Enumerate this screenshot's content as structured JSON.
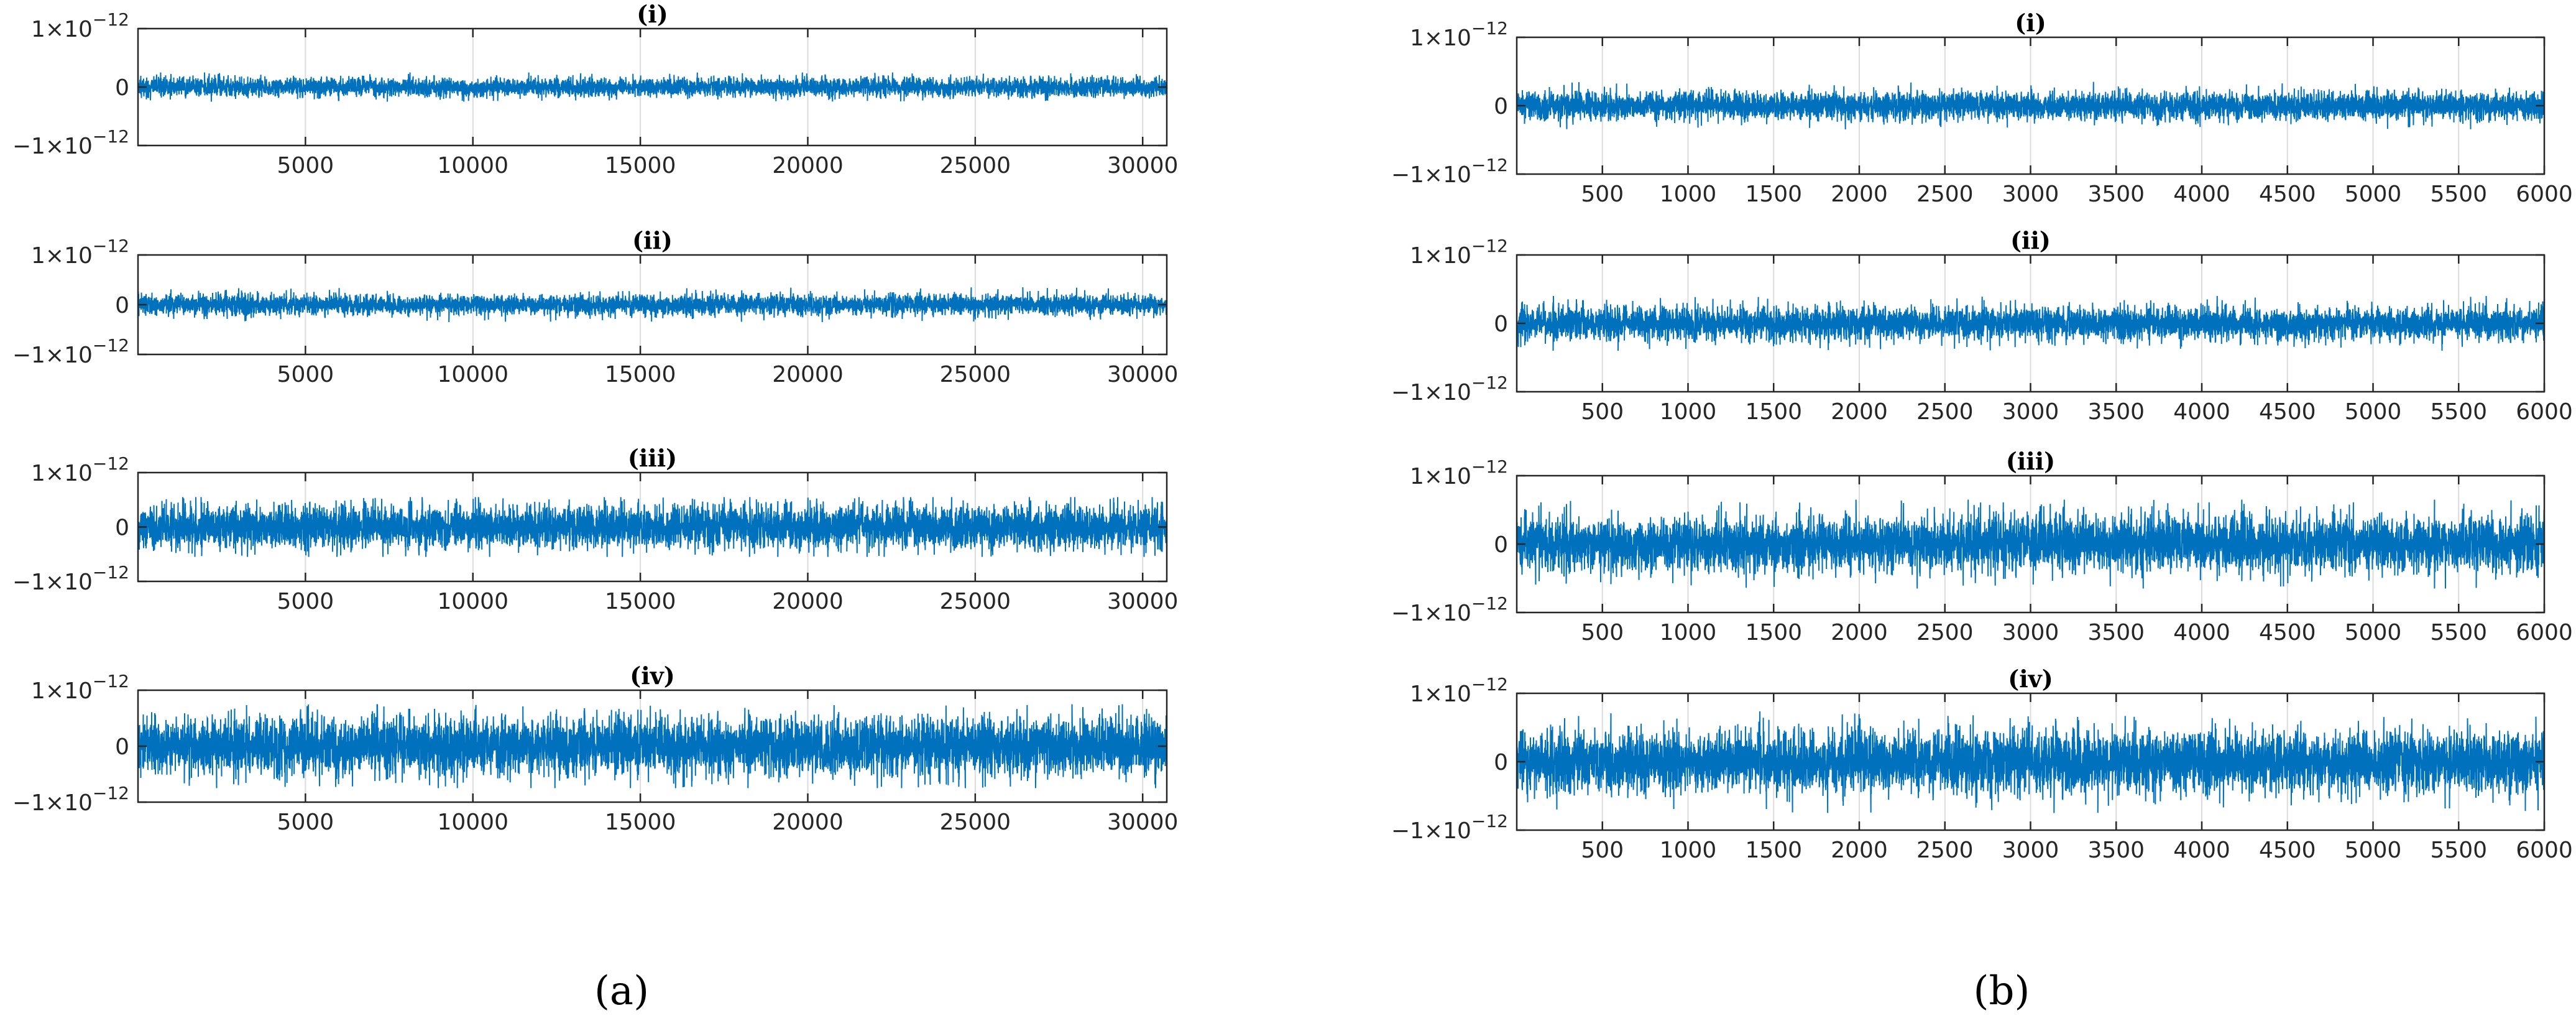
{
  "colors": {
    "series": "#0072BD",
    "grid": "#dcdcdc",
    "axis": "#262626",
    "background": "#ffffff"
  },
  "chart_data": [
    {
      "type": "line",
      "caption": "(a)",
      "subplot": "i",
      "title": "(i)",
      "xlim": [
        0,
        30720
      ],
      "ylim": [
        -1e-12,
        1e-12
      ],
      "grid": "vertical",
      "xticks": [
        5000,
        10000,
        15000,
        20000,
        25000,
        30000
      ],
      "xticklabels": [
        "5000",
        "10000",
        "15000",
        "20000",
        "25000",
        "30000"
      ],
      "yticks": [
        -1e-12,
        0,
        1e-12
      ],
      "yticklabels": [
        {
          "m": "−1×10",
          "e": "−12"
        },
        {
          "m": "0",
          "e": ""
        },
        {
          "m": "1×10",
          "e": "−12"
        }
      ],
      "series": [
        {
          "n_points": 30720,
          "mean": 0,
          "std": 8e-14,
          "peak": 2.5e-13,
          "seed": 11
        }
      ]
    },
    {
      "type": "line",
      "caption": "(a)",
      "subplot": "ii",
      "title": "(ii)",
      "xlim": [
        0,
        30720
      ],
      "ylim": [
        -1e-12,
        1e-12
      ],
      "grid": "vertical",
      "xticks": [
        5000,
        10000,
        15000,
        20000,
        25000,
        30000
      ],
      "xticklabels": [
        "5000",
        "10000",
        "15000",
        "20000",
        "25000",
        "30000"
      ],
      "yticks": [
        -1e-12,
        0,
        1e-12
      ],
      "yticklabels": [
        {
          "m": "−1×10",
          "e": "−12"
        },
        {
          "m": "0",
          "e": ""
        },
        {
          "m": "1×10",
          "e": "−12"
        }
      ],
      "series": [
        {
          "n_points": 30720,
          "mean": 0,
          "std": 1e-13,
          "peak": 3.5e-13,
          "seed": 23
        }
      ]
    },
    {
      "type": "line",
      "caption": "(a)",
      "subplot": "iii",
      "title": "(iii)",
      "xlim": [
        0,
        30720
      ],
      "ylim": [
        -1e-12,
        1e-12
      ],
      "grid": "vertical",
      "xticks": [
        5000,
        10000,
        15000,
        20000,
        25000,
        30000
      ],
      "xticklabels": [
        "5000",
        "10000",
        "15000",
        "20000",
        "25000",
        "30000"
      ],
      "yticks": [
        -1e-12,
        0,
        1e-12
      ],
      "yticklabels": [
        {
          "m": "−1×10",
          "e": "−12"
        },
        {
          "m": "0",
          "e": ""
        },
        {
          "m": "1×10",
          "e": "−12"
        }
      ],
      "series": [
        {
          "n_points": 30720,
          "mean": 0,
          "std": 2e-13,
          "peak": 5.5e-13,
          "seed": 37
        }
      ]
    },
    {
      "type": "line",
      "caption": "(a)",
      "subplot": "iv",
      "title": "(iv)",
      "xlim": [
        0,
        30720
      ],
      "ylim": [
        -1e-12,
        1e-12
      ],
      "grid": "vertical",
      "xticks": [
        5000,
        10000,
        15000,
        20000,
        25000,
        30000
      ],
      "xticklabels": [
        "5000",
        "10000",
        "15000",
        "20000",
        "25000",
        "30000"
      ],
      "yticks": [
        -1e-12,
        0,
        1e-12
      ],
      "yticklabels": [
        {
          "m": "−1×10",
          "e": "−12"
        },
        {
          "m": "0",
          "e": ""
        },
        {
          "m": "1×10",
          "e": "−12"
        }
      ],
      "series": [
        {
          "n_points": 30720,
          "mean": 0,
          "std": 2.5e-13,
          "peak": 7.5e-13,
          "seed": 41
        }
      ]
    },
    {
      "type": "line",
      "caption": "(b)",
      "subplot": "i",
      "title": "(i)",
      "xlim": [
        0,
        6000
      ],
      "ylim": [
        -1e-12,
        1e-12
      ],
      "grid": "vertical",
      "xticks": [
        500,
        1000,
        1500,
        2000,
        2500,
        3000,
        3500,
        4000,
        4500,
        5000,
        5500,
        6000
      ],
      "xticklabels": [
        "500",
        "1000",
        "1500",
        "2000",
        "2500",
        "3000",
        "3500",
        "4000",
        "4500",
        "5000",
        "5500",
        "6000"
      ],
      "yticks": [
        -1e-12,
        0,
        1e-12
      ],
      "yticklabels": [
        {
          "m": "−1×10",
          "e": "−12"
        },
        {
          "m": "0",
          "e": ""
        },
        {
          "m": "1×10",
          "e": "−12"
        }
      ],
      "series": [
        {
          "n_points": 6000,
          "mean": 0,
          "std": 1e-13,
          "peak": 3.5e-13,
          "seed": 53
        }
      ]
    },
    {
      "type": "line",
      "caption": "(b)",
      "subplot": "ii",
      "title": "(ii)",
      "xlim": [
        0,
        6000
      ],
      "ylim": [
        -1e-12,
        1e-12
      ],
      "grid": "vertical",
      "xticks": [
        500,
        1000,
        1500,
        2000,
        2500,
        3000,
        3500,
        4000,
        4500,
        5000,
        5500,
        6000
      ],
      "xticklabels": [
        "500",
        "1000",
        "1500",
        "2000",
        "2500",
        "3000",
        "3500",
        "4000",
        "4500",
        "5000",
        "5500",
        "6000"
      ],
      "yticks": [
        -1e-12,
        0,
        1e-12
      ],
      "yticklabels": [
        {
          "m": "−1×10",
          "e": "−12"
        },
        {
          "m": "0",
          "e": ""
        },
        {
          "m": "1×10",
          "e": "−12"
        }
      ],
      "series": [
        {
          "n_points": 6000,
          "mean": 0,
          "std": 1.2e-13,
          "peak": 4e-13,
          "seed": 67
        }
      ]
    },
    {
      "type": "line",
      "caption": "(b)",
      "subplot": "iii",
      "title": "(iii)",
      "xlim": [
        0,
        6000
      ],
      "ylim": [
        -1e-12,
        1e-12
      ],
      "grid": "vertical",
      "xticks": [
        500,
        1000,
        1500,
        2000,
        2500,
        3000,
        3500,
        4000,
        4500,
        5000,
        5500,
        6000
      ],
      "xticklabels": [
        "500",
        "1000",
        "1500",
        "2000",
        "2500",
        "3000",
        "3500",
        "4000",
        "4500",
        "5000",
        "5500",
        "6000"
      ],
      "yticks": [
        -1e-12,
        0,
        1e-12
      ],
      "yticklabels": [
        {
          "m": "−1×10",
          "e": "−12"
        },
        {
          "m": "0",
          "e": ""
        },
        {
          "m": "1×10",
          "e": "−12"
        }
      ],
      "series": [
        {
          "n_points": 6000,
          "mean": 0,
          "std": 2e-13,
          "peak": 6.5e-13,
          "seed": 79
        }
      ]
    },
    {
      "type": "line",
      "caption": "(b)",
      "subplot": "iv",
      "title": "(iv)",
      "xlim": [
        0,
        6000
      ],
      "ylim": [
        -1e-12,
        1e-12
      ],
      "grid": "vertical",
      "xticks": [
        500,
        1000,
        1500,
        2000,
        2500,
        3000,
        3500,
        4000,
        4500,
        5000,
        5500,
        6000
      ],
      "xticklabels": [
        "500",
        "1000",
        "1500",
        "2000",
        "2500",
        "3000",
        "3500",
        "4000",
        "4500",
        "5000",
        "5500",
        "6000"
      ],
      "yticks": [
        -1e-12,
        0,
        1e-12
      ],
      "yticklabels": [
        {
          "m": "−1×10",
          "e": "−12"
        },
        {
          "m": "0",
          "e": ""
        },
        {
          "m": "1×10",
          "e": "−12"
        }
      ],
      "series": [
        {
          "n_points": 6000,
          "mean": 0,
          "std": 2.2e-13,
          "peak": 7.5e-13,
          "seed": 83
        }
      ]
    }
  ],
  "captions": {
    "a": "(a)",
    "b": "(b)"
  }
}
